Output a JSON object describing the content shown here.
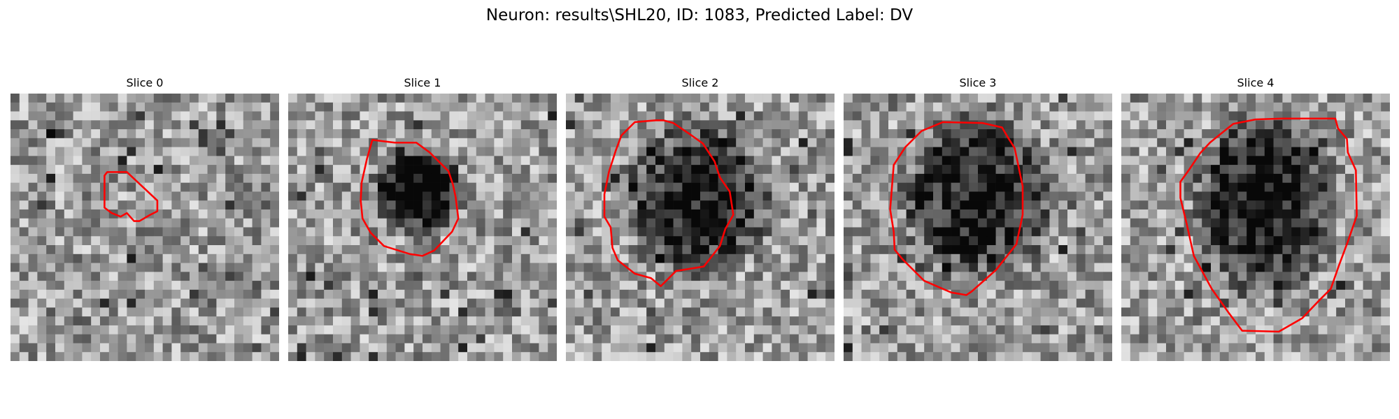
{
  "figure": {
    "title": "Neuron: results\\SHL20, ID: 1083, Predicted Label: DV"
  },
  "slices": [
    {
      "title": "Slice 0",
      "seed": 11
    },
    {
      "title": "Slice 1",
      "seed": 23
    },
    {
      "title": "Slice 2",
      "seed": 37
    },
    {
      "title": "Slice 3",
      "seed": 51
    },
    {
      "title": "Slice 4",
      "seed": 67
    }
  ],
  "colors": {
    "contour": "#ff0000",
    "background": "#ffffff"
  }
}
